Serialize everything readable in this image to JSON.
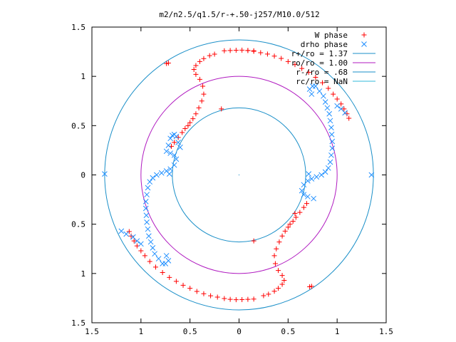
{
  "chart_data": {
    "type": "scatter",
    "title": "m2/n2.5/q1.5/r-+.50-j257/M10.0/512",
    "xlim": [
      -1.5,
      1.5
    ],
    "ylim": [
      -1.5,
      1.5
    ],
    "x_tick_labels": [
      "1.5",
      "1",
      "0.5",
      "0",
      "0.5",
      "1",
      "1.5"
    ],
    "x_tick_values": [
      -1.5,
      -1,
      -0.5,
      0,
      0.5,
      1,
      1.5
    ],
    "y_tick_labels": [
      "1.5",
      "1",
      "0.5",
      "0",
      "0.5",
      "1",
      "1.5"
    ],
    "y_tick_values": [
      1.5,
      1,
      0.5,
      0,
      -0.5,
      -1,
      -1.5
    ],
    "grid": false,
    "legend_position": "top-right",
    "legend": [
      {
        "label": "W phase",
        "kind": "marker",
        "marker": "plus",
        "color": "#ff0000"
      },
      {
        "label": "drho phase",
        "kind": "marker",
        "marker": "cross",
        "color": "#1f8fff"
      },
      {
        "label": "r+/ro = 1.37",
        "kind": "line",
        "color": "#1a8fc8"
      },
      {
        "label": "ro/ro = 1.00",
        "kind": "line",
        "color": "#b01ac0"
      },
      {
        "label": "r-/ro = .68",
        "kind": "line",
        "color": "#1a8fc8"
      },
      {
        "label": "rc/ro = NaN",
        "kind": "line",
        "color": "#30b8d8"
      }
    ],
    "circles": [
      {
        "name": "r+/ro",
        "radius": 1.37,
        "color": "#1a8fc8"
      },
      {
        "name": "ro/ro",
        "radius": 1.0,
        "color": "#b01ac0"
      },
      {
        "name": "r-/ro",
        "radius": 0.68,
        "color": "#1a8fc8"
      }
    ],
    "series": [
      {
        "name": "W phase",
        "marker": "plus",
        "color": "#ff0000",
        "points": [
          [
            -0.15,
            1.26
          ],
          [
            -0.09,
            1.262
          ],
          [
            -0.03,
            1.265
          ],
          [
            0.03,
            1.266
          ],
          [
            0.09,
            1.262
          ],
          [
            0.15,
            1.254
          ],
          [
            0.22,
            1.24
          ],
          [
            0.29,
            1.226
          ],
          [
            0.36,
            1.205
          ],
          [
            0.43,
            1.182
          ],
          [
            0.5,
            1.15
          ],
          [
            0.57,
            1.12
          ],
          [
            0.64,
            1.08
          ],
          [
            0.71,
            1.04
          ],
          [
            0.78,
            0.99
          ],
          [
            0.85,
            0.935
          ],
          [
            0.91,
            0.878
          ],
          [
            0.96,
            0.82
          ],
          [
            1.0,
            0.77
          ],
          [
            1.04,
            0.72
          ],
          [
            1.07,
            0.67
          ],
          [
            1.1,
            0.62
          ],
          [
            1.12,
            0.575
          ],
          [
            -0.74,
            1.13
          ],
          [
            -0.72,
            1.135
          ],
          [
            -0.18,
            0.67
          ],
          [
            -0.69,
            0.29
          ],
          [
            -0.66,
            0.33
          ],
          [
            -0.62,
            0.38
          ],
          [
            -0.58,
            0.43
          ],
          [
            -0.55,
            0.47
          ],
          [
            -0.52,
            0.5
          ],
          [
            -0.5,
            0.53
          ],
          [
            -0.47,
            0.57
          ],
          [
            -0.44,
            0.62
          ],
          [
            -0.41,
            0.68
          ],
          [
            -0.38,
            0.75
          ],
          [
            -0.36,
            0.82
          ],
          [
            -0.37,
            0.9
          ],
          [
            -0.4,
            0.97
          ],
          [
            -0.44,
            1.02
          ],
          [
            -0.46,
            1.07
          ],
          [
            -0.44,
            1.11
          ],
          [
            -0.4,
            1.15
          ],
          [
            -0.36,
            1.18
          ],
          [
            -0.3,
            1.21
          ],
          [
            -0.25,
            1.225
          ],
          [
            0.15,
            1.26
          ],
          [
            0.09,
            1.262
          ],
          [
            0.15,
            -1.26
          ],
          [
            0.09,
            -1.262
          ],
          [
            0.03,
            -1.265
          ],
          [
            -0.03,
            -1.266
          ],
          [
            -0.09,
            -1.262
          ],
          [
            -0.15,
            -1.254
          ],
          [
            -0.22,
            -1.24
          ],
          [
            -0.29,
            -1.226
          ],
          [
            -0.36,
            -1.205
          ],
          [
            -0.43,
            -1.182
          ],
          [
            -0.5,
            -1.15
          ],
          [
            -0.57,
            -1.12
          ],
          [
            -0.64,
            -1.08
          ],
          [
            -0.71,
            -1.04
          ],
          [
            -0.78,
            -0.99
          ],
          [
            -0.85,
            -0.935
          ],
          [
            -0.91,
            -0.878
          ],
          [
            -0.96,
            -0.82
          ],
          [
            -1.0,
            -0.77
          ],
          [
            -1.04,
            -0.72
          ],
          [
            -1.07,
            -0.67
          ],
          [
            -1.1,
            -0.62
          ],
          [
            -1.12,
            -0.575
          ],
          [
            0.74,
            -1.13
          ],
          [
            0.72,
            -1.135
          ],
          [
            0.15,
            -0.67
          ],
          [
            0.57,
            -0.39
          ],
          [
            0.69,
            -0.29
          ],
          [
            0.66,
            -0.33
          ],
          [
            0.62,
            -0.38
          ],
          [
            0.58,
            -0.43
          ],
          [
            0.55,
            -0.47
          ],
          [
            0.52,
            -0.5
          ],
          [
            0.5,
            -0.53
          ],
          [
            0.47,
            -0.57
          ],
          [
            0.44,
            -0.62
          ],
          [
            0.41,
            -0.68
          ],
          [
            0.38,
            -0.75
          ],
          [
            0.36,
            -0.82
          ],
          [
            0.37,
            -0.9
          ],
          [
            0.4,
            -0.97
          ],
          [
            0.44,
            -1.02
          ],
          [
            0.46,
            -1.07
          ],
          [
            0.44,
            -1.11
          ],
          [
            0.4,
            -1.15
          ],
          [
            0.36,
            -1.18
          ],
          [
            0.3,
            -1.21
          ],
          [
            0.25,
            -1.225
          ]
        ]
      },
      {
        "name": "drho phase",
        "marker": "cross",
        "color": "#1f8fff",
        "points": [
          [
            0.78,
            0.9
          ],
          [
            0.82,
            0.85
          ],
          [
            0.86,
            0.8
          ],
          [
            0.88,
            0.74
          ],
          [
            0.9,
            0.68
          ],
          [
            0.92,
            0.62
          ],
          [
            0.93,
            0.55
          ],
          [
            0.94,
            0.48
          ],
          [
            0.945,
            0.41
          ],
          [
            0.95,
            0.34
          ],
          [
            0.95,
            0.27
          ],
          [
            0.94,
            0.2
          ],
          [
            0.93,
            0.13
          ],
          [
            0.91,
            0.07
          ],
          [
            0.88,
            0.03
          ],
          [
            0.84,
            0.0
          ],
          [
            0.79,
            -0.02
          ],
          [
            0.74,
            -0.04
          ],
          [
            0.7,
            -0.06
          ],
          [
            0.66,
            -0.1
          ],
          [
            0.64,
            -0.16
          ],
          [
            0.66,
            -0.2
          ],
          [
            0.7,
            -0.22
          ],
          [
            0.76,
            -0.24
          ],
          [
            0.71,
            0.01
          ],
          [
            1.35,
            0.0
          ],
          [
            0.74,
            0.82
          ],
          [
            0.72,
            0.87
          ],
          [
            0.75,
            0.9
          ],
          [
            1.0,
            0.7
          ],
          [
            1.04,
            0.67
          ],
          [
            1.08,
            0.63
          ],
          [
            -0.78,
            -0.9
          ],
          [
            -0.82,
            -0.85
          ],
          [
            -0.86,
            -0.8
          ],
          [
            -0.88,
            -0.74
          ],
          [
            -0.9,
            -0.68
          ],
          [
            -0.92,
            -0.62
          ],
          [
            -0.93,
            -0.55
          ],
          [
            -0.94,
            -0.48
          ],
          [
            -0.945,
            -0.41
          ],
          [
            -0.95,
            -0.34
          ],
          [
            -0.95,
            -0.27
          ],
          [
            -0.94,
            -0.2
          ],
          [
            -0.93,
            -0.13
          ],
          [
            -0.91,
            -0.07
          ],
          [
            -0.88,
            -0.03
          ],
          [
            -0.84,
            0.0
          ],
          [
            -0.79,
            0.02
          ],
          [
            -0.74,
            0.04
          ],
          [
            -0.7,
            0.06
          ],
          [
            -0.66,
            0.1
          ],
          [
            -0.64,
            0.16
          ],
          [
            -0.66,
            0.2
          ],
          [
            -0.7,
            0.22
          ],
          [
            -0.74,
            0.24
          ],
          [
            -0.71,
            0.01
          ],
          [
            -1.37,
            0.01
          ],
          [
            -0.74,
            -0.82
          ],
          [
            -0.72,
            -0.87
          ],
          [
            -0.75,
            -0.9
          ],
          [
            -1.0,
            -0.7
          ],
          [
            -1.04,
            -0.67
          ],
          [
            -1.08,
            -0.63
          ],
          [
            -1.15,
            -0.6
          ],
          [
            -1.2,
            -0.57
          ],
          [
            -0.72,
            0.3
          ],
          [
            -0.7,
            0.37
          ],
          [
            -0.68,
            0.4
          ],
          [
            -0.66,
            0.41
          ],
          [
            -0.64,
            0.39
          ],
          [
            -0.62,
            0.33
          ],
          [
            -0.6,
            0.28
          ]
        ]
      }
    ]
  }
}
